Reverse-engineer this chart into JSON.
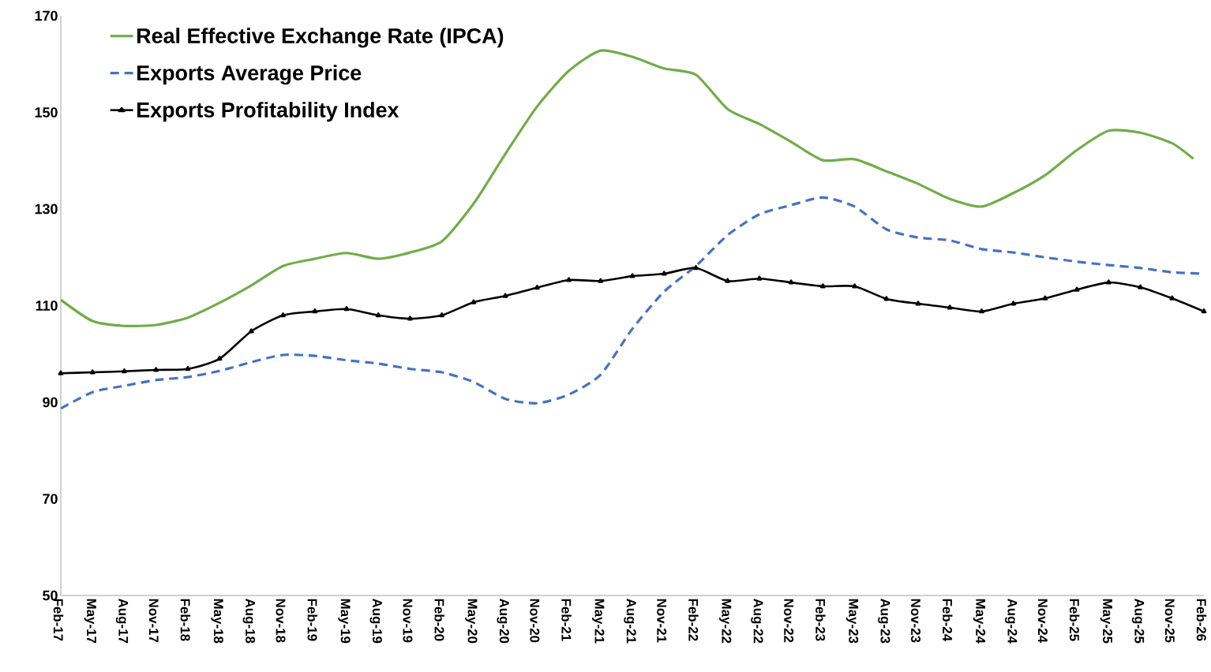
{
  "chart_data": {
    "type": "line",
    "xlim": [
      "2017-02",
      "2026-02"
    ],
    "ylim": [
      50,
      170
    ],
    "yticks": [
      50,
      70,
      90,
      110,
      130,
      150,
      170
    ],
    "xticks": [
      {
        "value": "2017-02",
        "label": "Feb-17"
      },
      {
        "value": "2017-05",
        "label": "May-17"
      },
      {
        "value": "2017-08",
        "label": "Aug-17"
      },
      {
        "value": "2017-11",
        "label": "Nov-17"
      },
      {
        "value": "2018-02",
        "label": "Feb-18"
      },
      {
        "value": "2018-05",
        "label": "May-18"
      },
      {
        "value": "2018-08",
        "label": "Aug-18"
      },
      {
        "value": "2018-11",
        "label": "Nov-18"
      },
      {
        "value": "2019-02",
        "label": "Feb-19"
      },
      {
        "value": "2019-05",
        "label": "May-19"
      },
      {
        "value": "2019-08",
        "label": "Aug-19"
      },
      {
        "value": "2019-11",
        "label": "Nov-19"
      },
      {
        "value": "2020-02",
        "label": "Feb-20"
      },
      {
        "value": "2020-05",
        "label": "May-20"
      },
      {
        "value": "2020-08",
        "label": "Aug-20"
      },
      {
        "value": "2020-11",
        "label": "Nov-20"
      },
      {
        "value": "2021-02",
        "label": "Feb-21"
      },
      {
        "value": "2021-05",
        "label": "May-21"
      },
      {
        "value": "2021-08",
        "label": "Aug-21"
      },
      {
        "value": "2021-11",
        "label": "Nov-21"
      },
      {
        "value": "2022-02",
        "label": "Feb-22"
      },
      {
        "value": "2022-05",
        "label": "May-22"
      },
      {
        "value": "2022-08",
        "label": "Aug-22"
      },
      {
        "value": "2022-11",
        "label": "Nov-22"
      },
      {
        "value": "2023-02",
        "label": "Feb-23"
      },
      {
        "value": "2023-05",
        "label": "May-23"
      },
      {
        "value": "2023-08",
        "label": "Aug-23"
      },
      {
        "value": "2023-11",
        "label": "Nov-23"
      },
      {
        "value": "2024-02",
        "label": "Feb-24"
      },
      {
        "value": "2024-05",
        "label": "May-24"
      },
      {
        "value": "2024-08",
        "label": "Aug-24"
      },
      {
        "value": "2024-11",
        "label": "Nov-24"
      },
      {
        "value": "2025-02",
        "label": "Feb-25"
      },
      {
        "value": "2025-05",
        "label": "May-25"
      },
      {
        "value": "2025-08",
        "label": "Aug-25"
      },
      {
        "value": "2025-11",
        "label": "Nov-25"
      },
      {
        "value": "2026-02",
        "label": "Feb-26"
      }
    ],
    "legend": "top left",
    "grid": false,
    "series": [
      {
        "name": "Real Effective Exchange Rate (IPCA)",
        "color": "#70ad47",
        "line_style": "solid",
        "marker": "none",
        "x": [
          "2017-02",
          "2017-05",
          "2017-08",
          "2017-11",
          "2018-02",
          "2018-05",
          "2018-08",
          "2018-11",
          "2019-02",
          "2019-05",
          "2019-08",
          "2019-11",
          "2020-02",
          "2020-05",
          "2020-08",
          "2020-11",
          "2021-02",
          "2021-05",
          "2021-08",
          "2021-11",
          "2022-02",
          "2022-05",
          "2022-08",
          "2022-11",
          "2023-02",
          "2023-05",
          "2023-08",
          "2023-11",
          "2024-02",
          "2024-05",
          "2024-08",
          "2024-11",
          "2025-02",
          "2025-05",
          "2025-08",
          "2025-11",
          "2026-01"
        ],
        "values": [
          111.2,
          106.8,
          105.8,
          106.0,
          107.5,
          110.6,
          114.2,
          118.2,
          119.7,
          120.9,
          119.7,
          121.0,
          123.3,
          131.1,
          141.4,
          151.2,
          158.6,
          162.8,
          161.5,
          159.1,
          157.8,
          150.7,
          147.6,
          143.9,
          140.1,
          140.3,
          137.8,
          135.2,
          132.1,
          130.5,
          133.3,
          137.0,
          142.2,
          146.2,
          145.8,
          143.6,
          140.4
        ]
      },
      {
        "name": "Exports Average Price",
        "color": "#4472c4",
        "line_style": "dashed",
        "marker": "none",
        "x": [
          "2017-02",
          "2017-05",
          "2017-08",
          "2017-11",
          "2018-02",
          "2018-05",
          "2018-08",
          "2018-11",
          "2019-02",
          "2019-05",
          "2019-08",
          "2019-11",
          "2020-02",
          "2020-05",
          "2020-08",
          "2020-11",
          "2021-02",
          "2021-05",
          "2021-08",
          "2021-11",
          "2022-02",
          "2022-05",
          "2022-08",
          "2022-11",
          "2023-02",
          "2023-05",
          "2023-08",
          "2023-11",
          "2024-02",
          "2024-05",
          "2024-08",
          "2024-11",
          "2025-02",
          "2025-05",
          "2025-08",
          "2025-11",
          "2026-02"
        ],
        "values": [
          88.7,
          92.1,
          93.4,
          94.6,
          95.2,
          96.5,
          98.3,
          99.8,
          99.6,
          98.7,
          98.0,
          96.9,
          96.2,
          94.2,
          90.7,
          89.8,
          91.6,
          95.7,
          105.2,
          112.9,
          118.2,
          124.6,
          128.9,
          130.8,
          132.4,
          130.5,
          125.8,
          124.1,
          123.5,
          121.7,
          121.0,
          120.0,
          119.1,
          118.4,
          117.8,
          116.9,
          116.6
        ]
      },
      {
        "name": "Exports Profitability Index",
        "color": "#000000",
        "line_style": "solid",
        "marker": "triangle",
        "x": [
          "2017-02",
          "2017-05",
          "2017-08",
          "2017-11",
          "2018-02",
          "2018-05",
          "2018-08",
          "2018-11",
          "2019-02",
          "2019-05",
          "2019-08",
          "2019-11",
          "2020-02",
          "2020-05",
          "2020-08",
          "2020-11",
          "2021-02",
          "2021-05",
          "2021-08",
          "2021-11",
          "2022-02",
          "2022-05",
          "2022-08",
          "2022-11",
          "2023-02",
          "2023-05",
          "2023-08",
          "2023-11",
          "2024-02",
          "2024-05",
          "2024-08",
          "2024-11",
          "2025-02",
          "2025-05",
          "2025-08",
          "2025-11",
          "2026-02"
        ],
        "values": [
          96.0,
          96.2,
          96.4,
          96.7,
          96.9,
          99.0,
          104.7,
          108.0,
          108.8,
          109.3,
          108.0,
          107.3,
          108.0,
          110.7,
          112.0,
          113.7,
          115.3,
          115.1,
          116.1,
          116.6,
          117.8,
          115.1,
          115.6,
          114.8,
          114.0,
          114.0,
          111.4,
          110.4,
          109.6,
          108.8,
          110.4,
          111.5,
          113.3,
          114.8,
          113.8,
          111.5,
          108.8
        ]
      }
    ]
  }
}
